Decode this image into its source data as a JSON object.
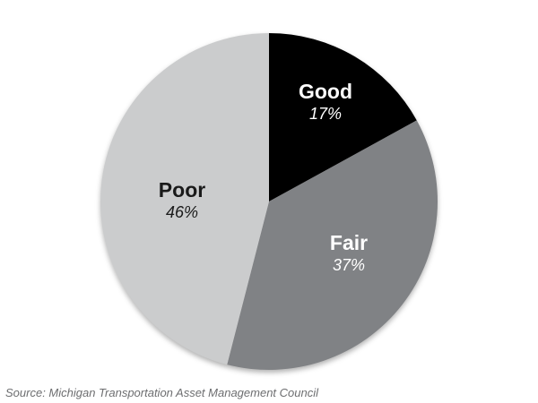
{
  "chart_data": {
    "type": "pie",
    "title": "",
    "start_angle_deg": -90,
    "direction": "clockwise",
    "legend": "none",
    "labels_inside": true,
    "categories": [
      "Good",
      "Fair",
      "Poor"
    ],
    "values": [
      17,
      37,
      46
    ],
    "slices": [
      {
        "label": "Good",
        "value": 17,
        "pct_text": "17%",
        "color": "#000000",
        "text_color": "#ffffff"
      },
      {
        "label": "Fair",
        "value": 37,
        "pct_text": "37%",
        "color": "#808285",
        "text_color": "#ffffff"
      },
      {
        "label": "Poor",
        "value": 46,
        "pct_text": "46%",
        "color": "#cbcccd",
        "text_color": "#1a1a1a"
      }
    ]
  },
  "footer": {
    "source_text": "Source: Michigan Transportation Asset Management Council"
  }
}
